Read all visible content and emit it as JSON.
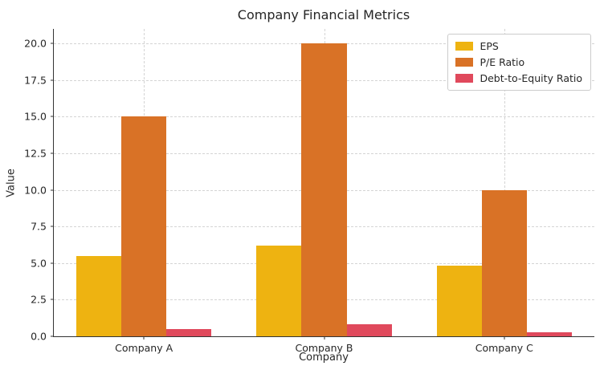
{
  "chart_data": {
    "type": "bar",
    "title": "Company Financial Metrics",
    "xlabel": "Company",
    "ylabel": "Value",
    "categories": [
      "Company A",
      "Company B",
      "Company C"
    ],
    "series": [
      {
        "name": "EPS",
        "color": "#EEB311",
        "values": [
          5.5,
          6.2,
          4.8
        ]
      },
      {
        "name": "P/E Ratio",
        "color": "#D97226",
        "values": [
          15.0,
          20.0,
          10.0
        ]
      },
      {
        "name": "Debt-to-Equity Ratio",
        "color": "#E0495C",
        "values": [
          0.5,
          0.8,
          0.3
        ]
      }
    ],
    "ylim": [
      0,
      21
    ],
    "yticks": [
      "0.0",
      "2.5",
      "5.0",
      "7.5",
      "10.0",
      "12.5",
      "15.0",
      "17.5",
      "20.0"
    ],
    "grid": true,
    "grid_style": "dashed",
    "legend_position": "upper right",
    "colors": {
      "text": "#262626",
      "grid": "#d4d4d4",
      "spine": "#333333",
      "background": "#ffffff"
    }
  }
}
